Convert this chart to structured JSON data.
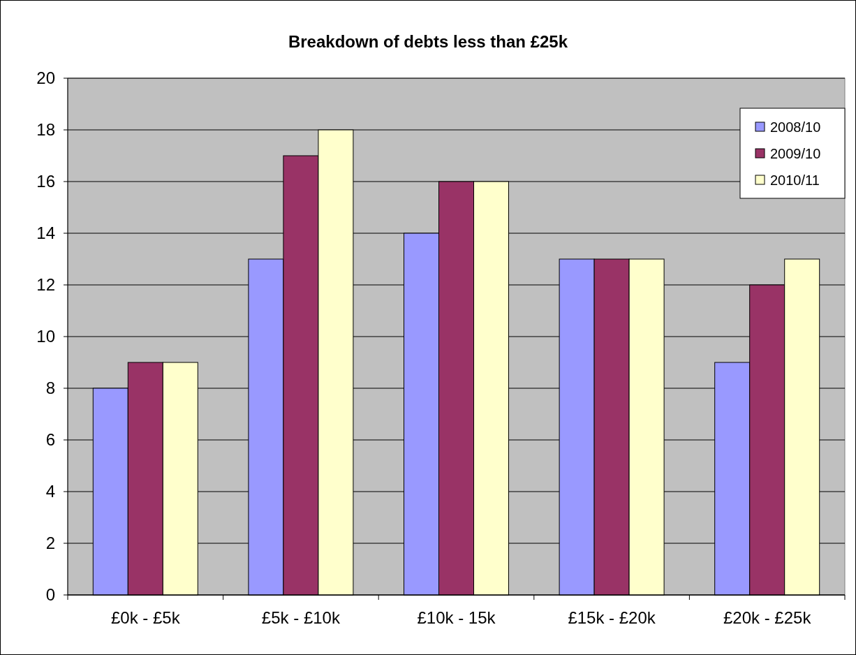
{
  "chart_data": {
    "type": "bar",
    "title": "Breakdown of debts less than £25k",
    "categories": [
      "£0k - £5k",
      "£5k - £10k",
      "£10k - 15k",
      "£15k - £20k",
      "£20k - £25k"
    ],
    "series": [
      {
        "name": "2008/10",
        "color": "#9999ff",
        "values": [
          8,
          13,
          14,
          13,
          9
        ]
      },
      {
        "name": "2009/10",
        "color": "#993366",
        "values": [
          9,
          17,
          16,
          13,
          12
        ]
      },
      {
        "name": "2010/11",
        "color": "#ffffcc",
        "values": [
          9,
          18,
          16,
          13,
          13
        ]
      }
    ],
    "ylim": [
      0,
      20
    ],
    "yticks": [
      0,
      2,
      4,
      6,
      8,
      10,
      12,
      14,
      16,
      18,
      20
    ],
    "grid": "y",
    "legend": "top right"
  }
}
